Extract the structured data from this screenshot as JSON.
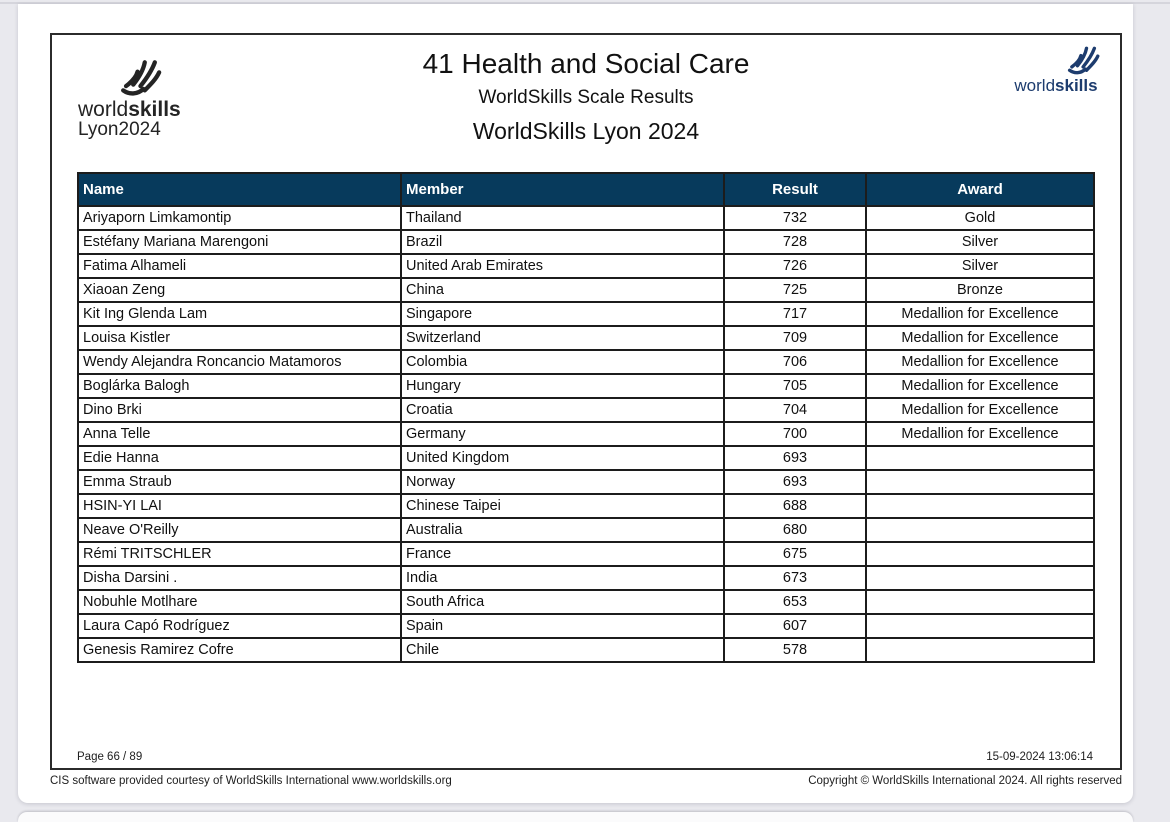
{
  "header": {
    "competition_title": "41 Health and Social Care",
    "subtitle": "WorldSkills Scale Results",
    "event_title": "WorldSkills Lyon 2024"
  },
  "logos": {
    "left": {
      "brand_world": "world",
      "brand_skills": "skills",
      "event": "Lyon2024"
    },
    "right": {
      "brand_world": "world",
      "brand_skills": "skills"
    }
  },
  "table": {
    "columns": [
      "Name",
      "Member",
      "Result",
      "Award"
    ],
    "rows": [
      {
        "name": "Ariyaporn Limkamontip",
        "member": "Thailand",
        "result": "732",
        "award": "Gold"
      },
      {
        "name": "Estéfany Mariana Marengoni",
        "member": "Brazil",
        "result": "728",
        "award": "Silver"
      },
      {
        "name": "Fatima Alhameli",
        "member": "United Arab Emirates",
        "result": "726",
        "award": "Silver"
      },
      {
        "name": "Xiaoan Zeng",
        "member": "China",
        "result": "725",
        "award": "Bronze"
      },
      {
        "name": "Kit Ing Glenda Lam",
        "member": "Singapore",
        "result": "717",
        "award": "Medallion for Excellence"
      },
      {
        "name": "Louisa Kistler",
        "member": "Switzerland",
        "result": "709",
        "award": "Medallion for Excellence"
      },
      {
        "name": "Wendy Alejandra Roncancio Matamoros",
        "member": "Colombia",
        "result": "706",
        "award": "Medallion for Excellence"
      },
      {
        "name": "Boglárka Balogh",
        "member": "Hungary",
        "result": "705",
        "award": "Medallion for Excellence"
      },
      {
        "name": "Dino Brki",
        "member": "Croatia",
        "result": "704",
        "award": "Medallion for Excellence"
      },
      {
        "name": "Anna Telle",
        "member": "Germany",
        "result": "700",
        "award": "Medallion for Excellence"
      },
      {
        "name": "Edie Hanna",
        "member": "United Kingdom",
        "result": "693",
        "award": ""
      },
      {
        "name": "Emma Straub",
        "member": "Norway",
        "result": "693",
        "award": ""
      },
      {
        "name": "HSIN-YI LAI",
        "member": "Chinese Taipei",
        "result": "688",
        "award": ""
      },
      {
        "name": "Neave O'Reilly",
        "member": "Australia",
        "result": "680",
        "award": ""
      },
      {
        "name": "Rémi TRITSCHLER",
        "member": "France",
        "result": "675",
        "award": ""
      },
      {
        "name": "Disha Darsini .",
        "member": "India",
        "result": "673",
        "award": ""
      },
      {
        "name": "Nobuhle Motlhare",
        "member": "South Africa",
        "result": "653",
        "award": ""
      },
      {
        "name": "Laura Capó Rodríguez",
        "member": "Spain",
        "result": "607",
        "award": ""
      },
      {
        "name": "Genesis Ramirez Cofre",
        "member": "Chile",
        "result": "578",
        "award": ""
      }
    ]
  },
  "footer": {
    "page_number": "Page 66 / 89",
    "timestamp": "15-09-2024 13:06:14",
    "cis_line": "CIS software provided courtesy of WorldSkills International www.worldskills.org",
    "copyright_line": "Copyright © WorldSkills International 2024. All rights reserved"
  },
  "colors": {
    "table_header_bg": "#073a5c",
    "brand_navy": "#1d3c6e",
    "ink": "#1c1c1c",
    "backdrop": "#e9e9ee"
  }
}
